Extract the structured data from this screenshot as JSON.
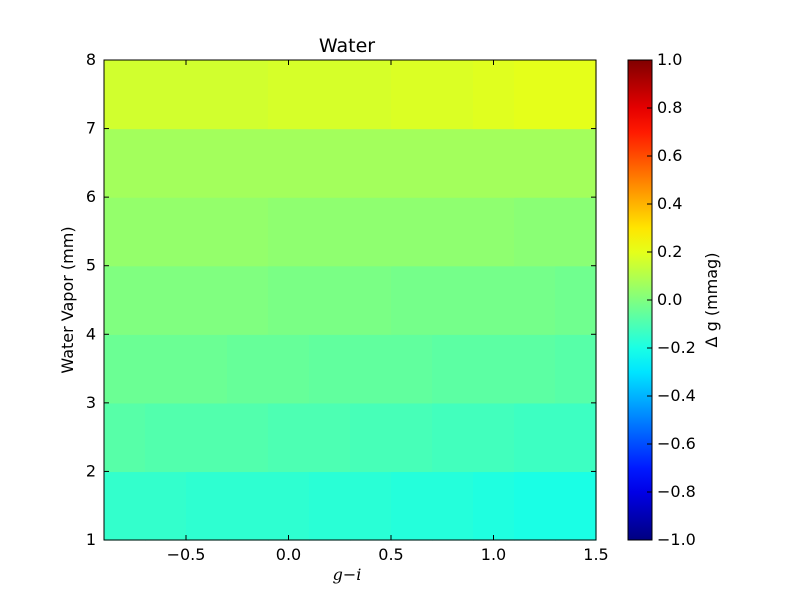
{
  "chart_data": {
    "type": "heatmap",
    "title": "Water",
    "xlabel": "g−i",
    "ylabel": "Water Vapor (mm)",
    "xlim": [
      -0.9,
      1.5
    ],
    "ylim": [
      1,
      8
    ],
    "x_ticks": [
      -0.5,
      0.0,
      0.5,
      1.0,
      1.5
    ],
    "x_tick_labels": [
      "−0.5",
      "0.0",
      "0.5",
      "1.0",
      "1.5"
    ],
    "y_ticks": [
      1,
      2,
      3,
      4,
      5,
      6,
      7,
      8
    ],
    "y_tick_labels": [
      "1",
      "2",
      "3",
      "4",
      "5",
      "6",
      "7",
      "8"
    ],
    "x_edges": [
      -0.9,
      -0.7,
      -0.5,
      -0.3,
      -0.1,
      0.1,
      0.3,
      0.5,
      0.7,
      0.9,
      1.1,
      1.3,
      1.5
    ],
    "y_edges": [
      1,
      2,
      3,
      4,
      5,
      6,
      7,
      8
    ],
    "values": [
      [
        -0.15,
        -0.15,
        -0.16,
        -0.16,
        -0.16,
        -0.17,
        -0.17,
        -0.18,
        -0.18,
        -0.19,
        -0.2,
        -0.2
      ],
      [
        -0.08,
        -0.09,
        -0.09,
        -0.09,
        -0.1,
        -0.1,
        -0.11,
        -0.11,
        -0.12,
        -0.12,
        -0.13,
        -0.13
      ],
      [
        -0.04,
        -0.04,
        -0.04,
        -0.05,
        -0.05,
        -0.06,
        -0.06,
        -0.06,
        -0.07,
        -0.07,
        -0.07,
        -0.08
      ],
      [
        0.0,
        0.0,
        0.0,
        0.0,
        -0.01,
        -0.01,
        -0.01,
        -0.02,
        -0.02,
        -0.02,
        -0.02,
        -0.03
      ],
      [
        0.04,
        0.04,
        0.04,
        0.04,
        0.03,
        0.03,
        0.03,
        0.03,
        0.03,
        0.03,
        0.02,
        0.02
      ],
      [
        0.07,
        0.07,
        0.07,
        0.07,
        0.07,
        0.07,
        0.07,
        0.07,
        0.07,
        0.07,
        0.07,
        0.07
      ],
      [
        0.16,
        0.16,
        0.16,
        0.16,
        0.17,
        0.17,
        0.17,
        0.18,
        0.18,
        0.19,
        0.2,
        0.2
      ]
    ],
    "colorbar": {
      "label": "Δ g (mmag)",
      "vmin": -1.0,
      "vmax": 1.0,
      "ticks": [
        -1.0,
        -0.8,
        -0.6,
        -0.4,
        -0.2,
        0.0,
        0.2,
        0.4,
        0.6,
        0.8,
        1.0
      ],
      "tick_labels": [
        "−1.0",
        "−0.8",
        "−0.6",
        "−0.4",
        "−0.2",
        "0.0",
        "0.2",
        "0.4",
        "0.6",
        "0.8",
        "1.0"
      ],
      "colormap": "jet"
    },
    "grid": false
  }
}
